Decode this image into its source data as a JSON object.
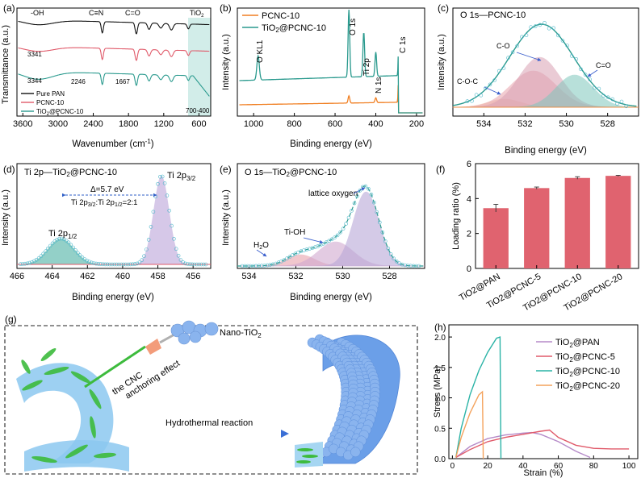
{
  "colors": {
    "pan": "#7b5ea7",
    "pcnc": "#e05a6a",
    "tio2": "#2a9a8e",
    "black": "#111111",
    "orange": "#f07f22",
    "fill_pink": "#e9a3ad",
    "fill_purple": "#c9b3d9",
    "fill_teal": "#7fc7bd",
    "dot": "#4db6c9",
    "bar": "#e0636f",
    "scheme_blue": "#8ab4ee",
    "scheme_green": "#3dbb3d"
  },
  "chart_data": [
    {
      "id": "a",
      "type": "line",
      "panel_label": "(a)",
      "xlabel": "Wavenumber (cm",
      "xlabel_sup": "-1",
      "xlabel_end": ")",
      "ylabel": "Transmittance (a.u.)",
      "x_ticks": [
        "3600",
        "3000",
        "2400",
        "1800",
        "1200",
        "600"
      ],
      "xlim": [
        3700,
        400
      ],
      "series": [
        {
          "name": "Pure PAN",
          "color": "#111111",
          "offset": 0
        },
        {
          "name": "PCNC-10",
          "color": "#e05a6a",
          "offset": 1
        },
        {
          "name": "TiO2@PCNC-10",
          "color": "#2a9a8e",
          "offset": 2
        }
      ],
      "legend": [
        "Pure PAN",
        "PCNC-10",
        "TiO",
        "2",
        "@PCNC-10"
      ],
      "annotations": {
        "oh": "-OH",
        "cn": "C≡N",
        "co": "C=O",
        "tio2": "TiO",
        "tio2_sub": "2",
        "w3341": "3341",
        "w3344": "3344",
        "w2246": "2246",
        "w1667": "1667",
        "range": "700-400"
      }
    },
    {
      "id": "b",
      "type": "line",
      "panel_label": "(b)",
      "xlabel": "Binding energy (eV)",
      "ylabel": "Intensity (a.u.)",
      "x_ticks": [
        "1000",
        "800",
        "600",
        "400",
        "200"
      ],
      "xlim": [
        1080,
        160
      ],
      "series": [
        {
          "name": "PCNC-10",
          "color": "#f07f22"
        },
        {
          "name": "TiO2@PCNC-10",
          "color": "#2a9a8e"
        }
      ],
      "legend": [
        "PCNC-10",
        "TiO",
        "2",
        "@PCNC-10"
      ],
      "peaks": {
        "okl": "O KL1",
        "o1s": "O 1s",
        "ti2p": "Ti 2p",
        "n1s": "N 1s",
        "c1s": "C 1s"
      }
    },
    {
      "id": "c",
      "type": "line",
      "panel_label": "(c)",
      "title": "O 1s—PCNC-10",
      "xlabel": "Binding energy (eV)",
      "ylabel": "Intensity (a.u.)",
      "x_ticks": [
        "534",
        "532",
        "530",
        "528"
      ],
      "xlim": [
        535.5,
        526.5
      ],
      "components": [
        {
          "name": "C-O-C",
          "center": 533.0
        },
        {
          "name": "C-O",
          "center": 531.3
        },
        {
          "name": "C=O",
          "center": 529.6
        }
      ]
    },
    {
      "id": "d",
      "type": "line",
      "panel_label": "(d)",
      "title": "Ti 2p—TiO",
      "title_sub": "2",
      "title_end": "@PCNC-10",
      "xlabel": "Binding energy (eV)",
      "ylabel": "Intensity (a.u.)",
      "x_ticks": [
        "466",
        "464",
        "462",
        "460",
        "458",
        "456"
      ],
      "xlim": [
        466,
        455
      ],
      "peaks": [
        {
          "name": "Ti 2p",
          "sub": "1/2",
          "center": 463.5
        },
        {
          "name": "Ti 2p",
          "sub": "3/2",
          "center": 457.8
        }
      ],
      "delta": "Δ=5.7 eV",
      "ratio": "Ti 2p",
      "ratio_sub1": "3/2",
      "ratio_mid": ":Ti 2p",
      "ratio_sub2": "1/2",
      "ratio_end": "=2:1"
    },
    {
      "id": "e",
      "type": "line",
      "panel_label": "(e)",
      "title": "O 1s—TiO",
      "title_sub": "2",
      "title_end": "@PCNC-10",
      "xlabel": "Binding energy (eV)",
      "ylabel": "Intensity (a.u.)",
      "x_ticks": [
        "534",
        "532",
        "530",
        "528"
      ],
      "xlim": [
        534.5,
        526.5
      ],
      "components": [
        {
          "name": "H2O",
          "label": "H",
          "label_sub": "2",
          "label_end": "O",
          "center": 531.8
        },
        {
          "name": "Ti-OH",
          "center": 530.3
        },
        {
          "name": "lattice oxygen",
          "center": 529.0
        }
      ]
    },
    {
      "id": "f",
      "type": "bar",
      "panel_label": "(f)",
      "xlabel": "",
      "ylabel": "Loading ratio (%)",
      "categories": [
        "TiO2@PAN",
        "TiO2@PCNC-5",
        "TiO2@PCNC-10",
        "TiO2@PCNC-20"
      ],
      "values": [
        3.45,
        4.6,
        5.18,
        5.3
      ],
      "errors": [
        0.22,
        0.06,
        0.07,
        0.03
      ],
      "ylim": [
        0,
        6
      ],
      "y_ticks": [
        "0",
        "2",
        "4",
        "6"
      ]
    },
    {
      "id": "h",
      "type": "line",
      "panel_label": "(h)",
      "xlabel": "Strain (%)",
      "ylabel": "Stress (MPa)",
      "x_ticks": [
        "0",
        "20",
        "40",
        "60",
        "80",
        "100"
      ],
      "xlim": [
        -2,
        105
      ],
      "y_ticks": [
        "0.0",
        "0.5",
        "1.0",
        "1.5",
        "2.0"
      ],
      "ylim": [
        0,
        2.2
      ],
      "series": [
        {
          "name": "TiO2@PAN",
          "legend": "TiO",
          "sub": "2",
          "end": "@PAN",
          "color": "#b58ac8",
          "x": [
            2,
            10,
            20,
            30,
            40,
            45,
            50,
            60,
            70,
            78
          ],
          "y": [
            0.02,
            0.2,
            0.33,
            0.39,
            0.42,
            0.43,
            0.4,
            0.28,
            0.12,
            0.02
          ]
        },
        {
          "name": "TiO2@PCNC-5",
          "legend": "TiO",
          "sub": "2",
          "end": "@PCNC-5",
          "color": "#e05a6a",
          "x": [
            2,
            10,
            20,
            30,
            40,
            50,
            55,
            60,
            70,
            80,
            90,
            100
          ],
          "y": [
            0.02,
            0.15,
            0.28,
            0.35,
            0.4,
            0.45,
            0.47,
            0.35,
            0.22,
            0.17,
            0.16,
            0.16
          ]
        },
        {
          "name": "TiO2@PCNC-10",
          "legend": "TiO",
          "sub": "2",
          "end": "@PCNC-10",
          "color": "#2ab3a6",
          "x": [
            2,
            5,
            10,
            15,
            20,
            25,
            27,
            27.5
          ],
          "y": [
            0.02,
            0.5,
            1.05,
            1.45,
            1.75,
            1.98,
            2.0,
            0.0
          ]
        },
        {
          "name": "TiO2@PCNC-20",
          "legend": "TiO",
          "sub": "2",
          "end": "@PCNC-20",
          "color": "#f4a25c",
          "x": [
            2,
            5,
            10,
            15,
            17,
            17.5
          ],
          "y": [
            0.02,
            0.35,
            0.75,
            1.05,
            1.1,
            0.0
          ]
        }
      ]
    }
  ],
  "scheme": {
    "panel_label": "(g)",
    "nano": "Nano-TiO",
    "nano_sub": "2",
    "anchor1": "the CNC",
    "anchor2": "anchoring effect",
    "reaction": "Hydrothermal reaction"
  }
}
